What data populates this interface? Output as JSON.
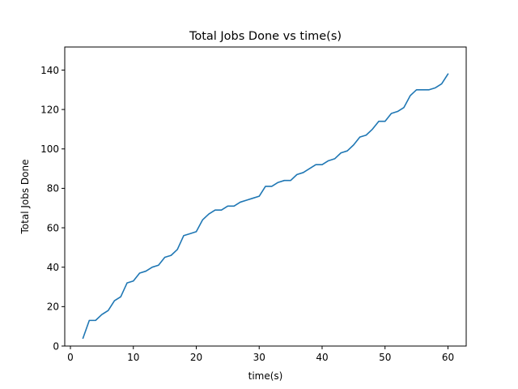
{
  "chart_data": {
    "type": "line",
    "title": "Total Jobs Done vs time(s)",
    "xlabel": "time(s)",
    "ylabel": "Total Jobs Done",
    "xlim": [
      -0.9,
      62.9
    ],
    "ylim": [
      0,
      151.7
    ],
    "xticks": [
      0,
      10,
      20,
      30,
      40,
      50,
      60
    ],
    "yticks": [
      0,
      20,
      40,
      60,
      80,
      100,
      120,
      140
    ],
    "grid": false,
    "colors": {
      "line": "#1f77b4",
      "axes": "#000000",
      "background": "#ffffff"
    },
    "series": [
      {
        "x": [
          2,
          3,
          4,
          5,
          6,
          7,
          8,
          9,
          10,
          11,
          12,
          13,
          14,
          15,
          16,
          17,
          18,
          19,
          20,
          21,
          22,
          23,
          24,
          25,
          26,
          27,
          28,
          29,
          30,
          31,
          32,
          33,
          34,
          35,
          36,
          37,
          38,
          39,
          40,
          41,
          42,
          43,
          44,
          45,
          46,
          47,
          48,
          49,
          50,
          51,
          52,
          53,
          54,
          55,
          56,
          57,
          58,
          59,
          60
        ],
        "values": [
          4,
          13,
          13,
          16,
          18,
          23,
          25,
          32,
          33,
          37,
          38,
          40,
          41,
          45,
          46,
          49,
          56,
          57,
          58,
          64,
          67,
          69,
          69,
          71,
          71,
          73,
          74,
          75,
          76,
          81,
          81,
          83,
          84,
          84,
          87,
          88,
          90,
          92,
          92,
          94,
          95,
          98,
          99,
          102,
          106,
          107,
          110,
          114,
          114,
          118,
          119,
          121,
          127,
          130,
          130,
          130,
          131,
          133,
          138
        ]
      }
    ]
  }
}
